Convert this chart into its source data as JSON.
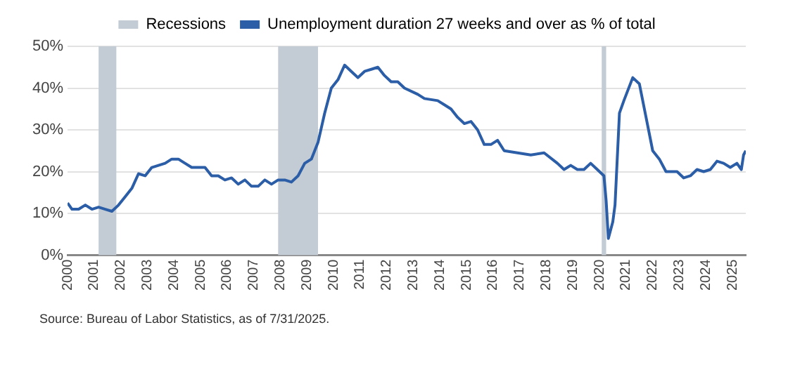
{
  "chart_data": {
    "type": "line",
    "annotations": [
      "Source: Bureau of Labor Statistics, as of 7/31/2025."
    ],
    "x": [
      "2000-01",
      "2000-03",
      "2000-06",
      "2000-09",
      "2000-12",
      "2001-03",
      "2001-06",
      "2001-09",
      "2001-12",
      "2002-03",
      "2002-06",
      "2002-09",
      "2002-12",
      "2003-03",
      "2003-06",
      "2003-09",
      "2003-12",
      "2004-03",
      "2004-06",
      "2004-09",
      "2004-12",
      "2005-03",
      "2005-06",
      "2005-09",
      "2005-12",
      "2006-03",
      "2006-06",
      "2006-09",
      "2006-12",
      "2007-03",
      "2007-06",
      "2007-09",
      "2007-12",
      "2008-03",
      "2008-06",
      "2008-09",
      "2008-12",
      "2009-03",
      "2009-06",
      "2009-09",
      "2009-12",
      "2010-03",
      "2010-06",
      "2010-09",
      "2010-12",
      "2011-03",
      "2011-06",
      "2011-09",
      "2011-12",
      "2012-03",
      "2012-06",
      "2012-09",
      "2013-03",
      "2013-06",
      "2013-12",
      "2014-03",
      "2014-06",
      "2014-09",
      "2014-12",
      "2015-03",
      "2015-06",
      "2015-09",
      "2015-12",
      "2016-03",
      "2016-06",
      "2016-12",
      "2017-06",
      "2017-12",
      "2018-06",
      "2018-09",
      "2018-12",
      "2019-03",
      "2019-06",
      "2019-09",
      "2019-12",
      "2020-03",
      "2020-04",
      "2020-05",
      "2020-07",
      "2020-08",
      "2020-10",
      "2020-12",
      "2021-04",
      "2021-07",
      "2021-10",
      "2022-01",
      "2022-04",
      "2022-07",
      "2022-12",
      "2023-03",
      "2023-06",
      "2023-09",
      "2023-12",
      "2024-03",
      "2024-06",
      "2024-09",
      "2024-12",
      "2025-03",
      "2025-05",
      "2025-06",
      "2025-07"
    ],
    "series": [
      {
        "name": "Unemployment duration 27 weeks and over as % of total",
        "color": "#2b5ea7",
        "values": [
          12.5,
          11,
          11,
          12,
          11,
          11.5,
          11,
          10.5,
          12,
          14,
          16,
          19.5,
          19,
          21,
          21.5,
          22,
          23,
          23,
          22,
          21,
          21,
          21,
          19,
          19,
          18,
          18.5,
          17,
          18,
          16.5,
          16.5,
          18,
          17,
          18,
          18,
          17.5,
          19,
          22,
          23,
          27,
          34,
          40,
          42,
          45.5,
          44,
          42.5,
          44,
          44.5,
          45,
          43,
          41.5,
          41.5,
          40,
          38.5,
          37.5,
          37,
          36,
          35,
          33,
          31.5,
          32,
          30,
          26.5,
          26.5,
          27.5,
          25,
          24.5,
          24,
          24.5,
          22,
          20.5,
          21.5,
          20.5,
          20.5,
          22,
          20.5,
          19,
          13,
          4,
          8,
          12,
          34,
          37,
          42.5,
          41,
          33,
          25,
          23,
          20,
          20,
          18.5,
          19,
          20.5,
          20,
          20.5,
          22.5,
          22,
          21,
          22,
          20.5,
          24,
          25
        ]
      }
    ],
    "xlim": [
      "2000-01",
      "2025-07"
    ],
    "xticks": [
      {
        "value": "2000-01",
        "label": "2000"
      },
      {
        "value": "2001-01",
        "label": "2001"
      },
      {
        "value": "2002-01",
        "label": "2002"
      },
      {
        "value": "2003-01",
        "label": "2003"
      },
      {
        "value": "2004-01",
        "label": "2004"
      },
      {
        "value": "2005-01",
        "label": "2005"
      },
      {
        "value": "2006-01",
        "label": "2006"
      },
      {
        "value": "2007-01",
        "label": "2007"
      },
      {
        "value": "2008-01",
        "label": "2008"
      },
      {
        "value": "2009-01",
        "label": "2009"
      },
      {
        "value": "2010-01",
        "label": "2010"
      },
      {
        "value": "2011-01",
        "label": "2011"
      },
      {
        "value": "2012-01",
        "label": "2012"
      },
      {
        "value": "2013-01",
        "label": "2013"
      },
      {
        "value": "2014-01",
        "label": "2014"
      },
      {
        "value": "2015-01",
        "label": "2015"
      },
      {
        "value": "2016-01",
        "label": "2016"
      },
      {
        "value": "2017-01",
        "label": "2017"
      },
      {
        "value": "2018-01",
        "label": "2018"
      },
      {
        "value": "2019-01",
        "label": "2019"
      },
      {
        "value": "2020-01",
        "label": "2020"
      },
      {
        "value": "2021-01",
        "label": "2021"
      },
      {
        "value": "2022-01",
        "label": "2022"
      },
      {
        "value": "2023-01",
        "label": "2023"
      },
      {
        "value": "2024-01",
        "label": "2024"
      },
      {
        "value": "2025-01",
        "label": "2025"
      }
    ],
    "ylim": [
      0,
      50
    ],
    "yticks": [
      {
        "value": 0,
        "label": "0%"
      },
      {
        "value": 10,
        "label": "10%"
      },
      {
        "value": 20,
        "label": "20%"
      },
      {
        "value": 30,
        "label": "30%"
      },
      {
        "value": 40,
        "label": "40%"
      },
      {
        "value": 50,
        "label": "50%"
      }
    ],
    "bands": [
      {
        "axis": "x",
        "from": "2001-03",
        "to": "2001-11",
        "label": "Recessions",
        "color": "#c3ccd5"
      },
      {
        "axis": "x",
        "from": "2007-12",
        "to": "2009-06",
        "color": "#c3ccd5"
      },
      {
        "axis": "x",
        "from": "2020-02",
        "to": "2020-04",
        "color": "#c3ccd5"
      }
    ],
    "grid": "y",
    "legend": "top",
    "marker": "none",
    "line_style": "solid"
  }
}
